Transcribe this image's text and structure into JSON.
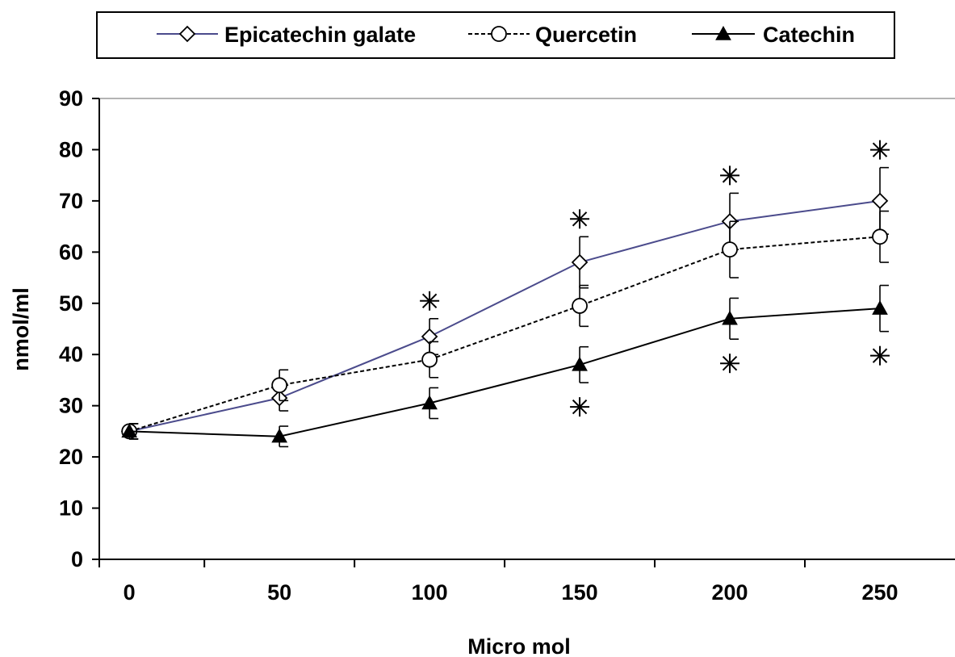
{
  "chart_data": {
    "type": "line",
    "title": "",
    "xlabel": "Micro mol",
    "ylabel": "nmol/ml",
    "x": [
      0,
      50,
      100,
      150,
      200,
      250
    ],
    "x_tick_labels": [
      "0",
      "50",
      "100",
      "150",
      "200",
      "250"
    ],
    "y_tick_labels": [
      "0",
      "10",
      "20",
      "30",
      "40",
      "50",
      "60",
      "70",
      "80",
      "90"
    ],
    "xlim": [
      -10,
      275
    ],
    "ylim": [
      0,
      90
    ],
    "grid": false,
    "legend_position": "top",
    "series": [
      {
        "name": "Epicatechin galate",
        "color": "#4b4b8c",
        "line_style": "solid",
        "marker": "open-diamond",
        "values": [
          25,
          31.5,
          43.5,
          58,
          66,
          70
        ],
        "errors": [
          1.5,
          2.5,
          3.5,
          5,
          5.5,
          6.5
        ],
        "significance": [
          "",
          "",
          "*",
          "*",
          "*",
          "*"
        ]
      },
      {
        "name": "Quercetin",
        "color": "#000000",
        "line_style": "dashed",
        "marker": "open-circle",
        "values": [
          25,
          34,
          39,
          49.5,
          60.5,
          63
        ],
        "errors": [
          1.5,
          3,
          3.5,
          4,
          5.5,
          5
        ],
        "significance": [
          "",
          "",
          "",
          "",
          "",
          ""
        ]
      },
      {
        "name": "Catechin",
        "color": "#000000",
        "line_style": "solid",
        "marker": "filled-triangle",
        "values": [
          25,
          24,
          30.5,
          38,
          47,
          49
        ],
        "errors": [
          1.5,
          2,
          3,
          3.5,
          4,
          4.5
        ],
        "significance": [
          "",
          "",
          "",
          "*",
          "*",
          "*"
        ]
      }
    ]
  }
}
